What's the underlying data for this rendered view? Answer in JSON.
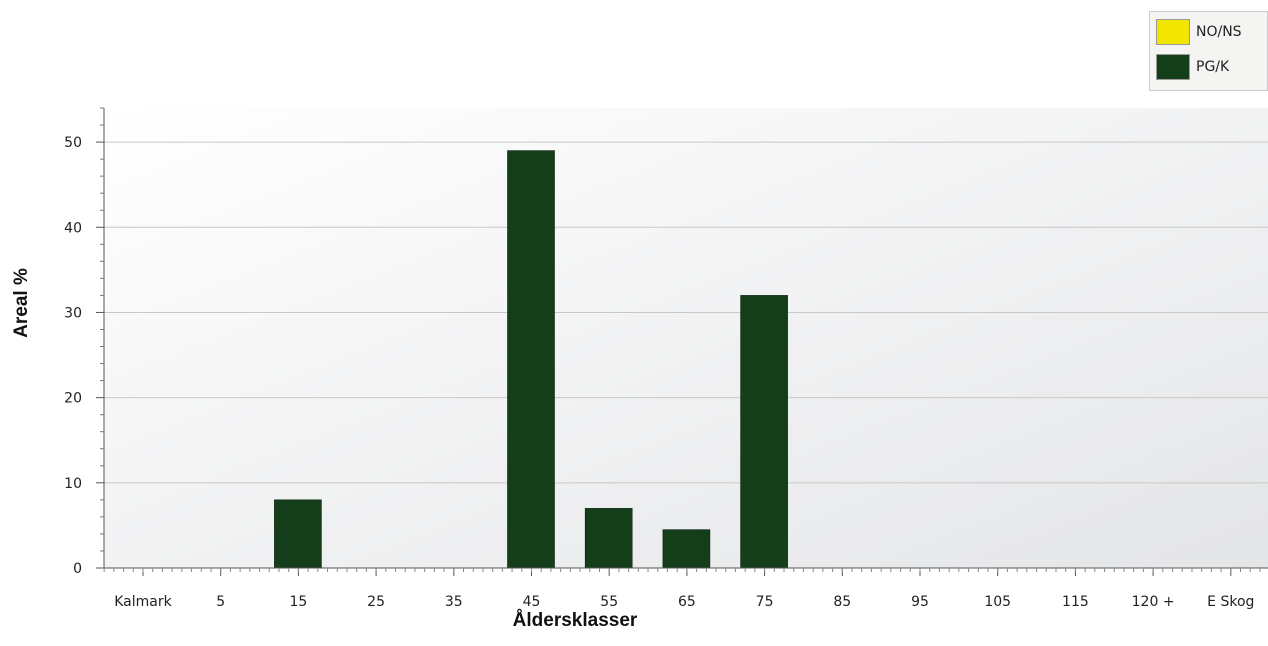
{
  "chart_data": {
    "type": "bar",
    "categories": [
      "Kalmark",
      "5",
      "15",
      "25",
      "35",
      "45",
      "55",
      "65",
      "75",
      "85",
      "95",
      "105",
      "115",
      "120 +",
      "E Skog"
    ],
    "series": [
      {
        "name": "NO/NS",
        "color": "#f2e600",
        "values": [
          0,
          0,
          0,
          0,
          0,
          0,
          0,
          0,
          0,
          0,
          0,
          0,
          0,
          0,
          0
        ]
      },
      {
        "name": "PG/K",
        "color": "#143d19",
        "values": [
          0,
          8,
          0,
          0,
          49,
          7,
          4.5,
          32,
          0,
          0,
          0,
          0,
          0,
          0,
          0
        ]
      }
    ],
    "xlabel": "Åldersklasser",
    "ylabel": "Areal %",
    "ylim": [
      0,
      54
    ],
    "yticks": [
      0,
      10,
      20,
      30,
      40,
      50
    ],
    "grid": true,
    "legend_position": "top-right"
  }
}
